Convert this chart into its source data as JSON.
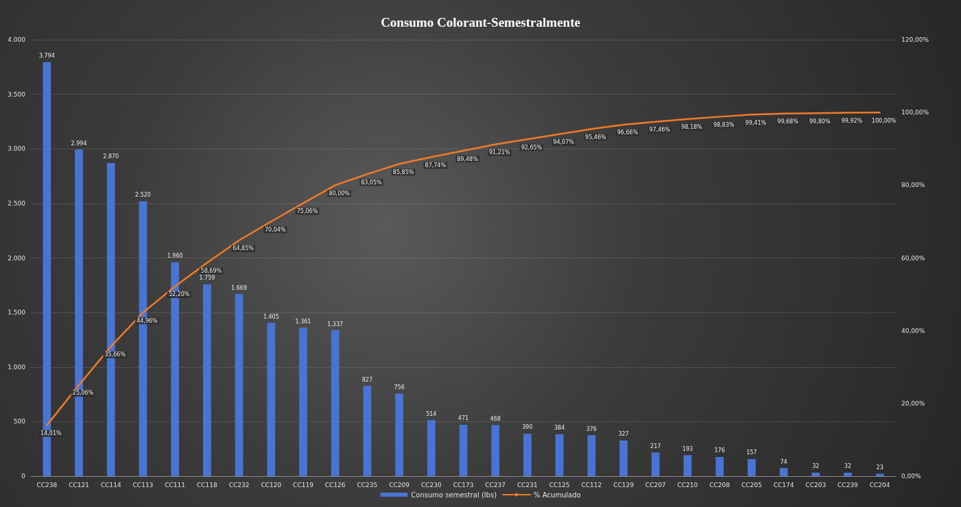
{
  "chart_data": {
    "type": "bar",
    "title": "Consumo Colorant-Semestralmente",
    "categories": [
      "CC238",
      "CC121",
      "CC114",
      "CC113",
      "CC111",
      "CC118",
      "CC232",
      "CC120",
      "CC119",
      "CC126",
      "CC235",
      "CC209",
      "CC230",
      "CC173",
      "CC237",
      "CC231",
      "CC125",
      "CC112",
      "CC129",
      "CC207",
      "CC210",
      "CC208",
      "CC205",
      "CC174",
      "CC203",
      "CC239",
      "CC204"
    ],
    "series": [
      {
        "name": "Consumo semestral (lbs)",
        "color": "#4a74d4",
        "values": [
          3794,
          2994,
          2870,
          2520,
          1960,
          1759,
          1669,
          1405,
          1361,
          1337,
          827,
          756,
          514,
          471,
          468,
          390,
          384,
          376,
          327,
          217,
          193,
          176,
          157,
          74,
          32,
          32,
          23
        ],
        "value_labels": [
          "3.794",
          "2.994",
          "2.870",
          "2.520",
          "1.960",
          "1.759",
          "1.669",
          "1.405",
          "1.361",
          "1.337",
          "827",
          "756",
          "514",
          "471",
          "468",
          "390",
          "384",
          "376",
          "327",
          "217",
          "193",
          "176",
          "157",
          "74",
          "32",
          "32",
          "23"
        ]
      },
      {
        "name": "% Acumulado",
        "type": "line",
        "axis": "y2",
        "color": "#f07c28",
        "values": [
          14.01,
          25.06,
          35.66,
          44.96,
          52.2,
          58.69,
          64.85,
          70.04,
          75.06,
          80.0,
          83.05,
          85.85,
          87.74,
          89.48,
          91.21,
          92.65,
          94.07,
          95.46,
          96.66,
          97.46,
          98.18,
          98.83,
          99.41,
          99.68,
          99.8,
          99.92,
          100.0
        ],
        "value_labels": [
          "14,01%",
          "25,06%",
          "35,66%",
          "44,96%",
          "52,20%",
          "58,69%",
          "64,85%",
          "70,04%",
          "75,06%",
          "80,00%",
          "83,05%",
          "85,85%",
          "87,74%",
          "89,48%",
          "91,21%",
          "92,65%",
          "94,07%",
          "95,46%",
          "96,66%",
          "97,46%",
          "98,18%",
          "98,83%",
          "99,41%",
          "99,68%",
          "99,80%",
          "99,92%",
          "100,00%"
        ]
      }
    ],
    "ylim": [
      0,
      4000
    ],
    "yticks": [
      {
        "value": 0,
        "label": "0"
      },
      {
        "value": 500,
        "label": "500"
      },
      {
        "value": 1000,
        "label": "1.000"
      },
      {
        "value": 1500,
        "label": "1.500"
      },
      {
        "value": 2000,
        "label": "2.000"
      },
      {
        "value": 2500,
        "label": "2.500"
      },
      {
        "value": 3000,
        "label": "3.000"
      },
      {
        "value": 3500,
        "label": "3.500"
      },
      {
        "value": 4000,
        "label": "4.000"
      }
    ],
    "y2lim": [
      0,
      120
    ],
    "y2ticks": [
      {
        "value": 0,
        "label": "0,00%"
      },
      {
        "value": 20,
        "label": "20,00%"
      },
      {
        "value": 40,
        "label": "40,00%"
      },
      {
        "value": 60,
        "label": "60,00%"
      },
      {
        "value": 80,
        "label": "80,00%"
      },
      {
        "value": 100,
        "label": "100,00%"
      },
      {
        "value": 120,
        "label": "120,00%"
      }
    ],
    "grid": "y",
    "legend": "bottom",
    "marker": "none",
    "line_style": "solid"
  }
}
